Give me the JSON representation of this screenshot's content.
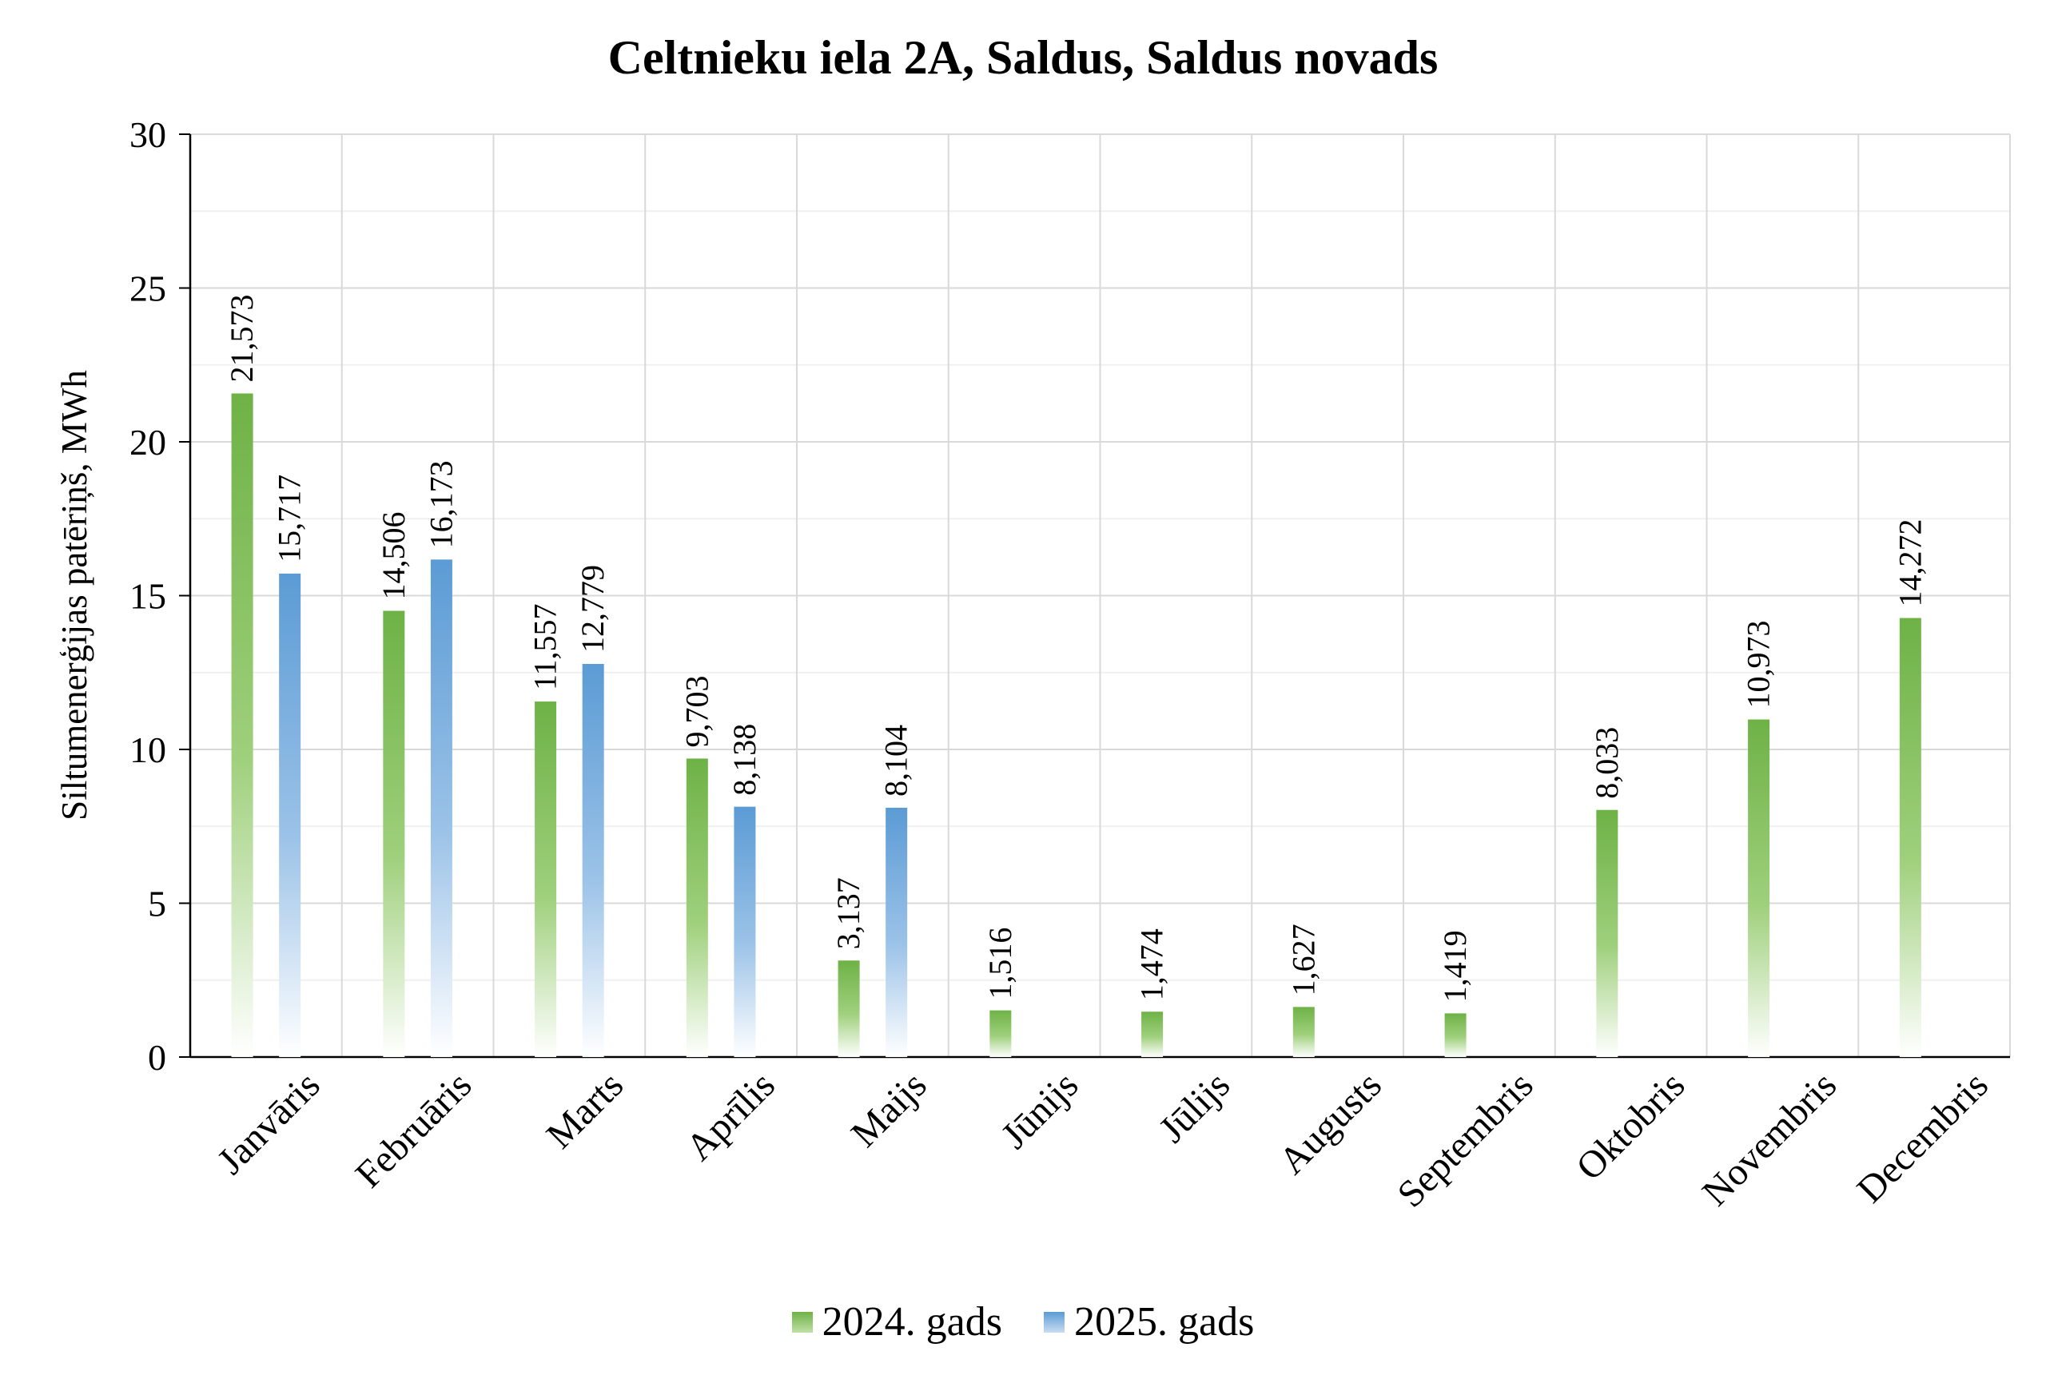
{
  "chart_data": {
    "type": "bar",
    "title": "Celtnieku iela 2A, Saldus, Saldus novads",
    "xlabel": "",
    "ylabel": "Siltumenerģijas patēriņš, MWh",
    "ylim": [
      0,
      30
    ],
    "yticks": [
      0,
      5,
      10,
      15,
      20,
      25,
      30
    ],
    "grid": true,
    "legend_position": "bottom",
    "categories": [
      "Janvāris",
      "Februāris",
      "Marts",
      "Aprīlis",
      "Maijs",
      "Jūnijs",
      "Jūlijs",
      "Augusts",
      "Septembris",
      "Oktobris",
      "Novembris",
      "Decembris"
    ],
    "series": [
      {
        "name": "2024. gads",
        "color": "#6eb246",
        "values": [
          21.573,
          14.506,
          11.557,
          9.703,
          3.137,
          1.516,
          1.474,
          1.627,
          1.419,
          8.033,
          10.973,
          14.272
        ],
        "labels": [
          "21,573",
          "14,506",
          "11,557",
          "9,703",
          "3,137",
          "1,516",
          "1,474",
          "1,627",
          "1,419",
          "8,033",
          "10,973",
          "14,272"
        ]
      },
      {
        "name": "2025. gads",
        "color": "#5b9bd5",
        "values": [
          15.717,
          16.173,
          12.779,
          8.138,
          8.104,
          null,
          null,
          null,
          null,
          null,
          null,
          null
        ],
        "labels": [
          "15,717",
          "16,173",
          "12,779",
          "8,138",
          "8,104",
          null,
          null,
          null,
          null,
          null,
          null,
          null
        ]
      }
    ]
  }
}
